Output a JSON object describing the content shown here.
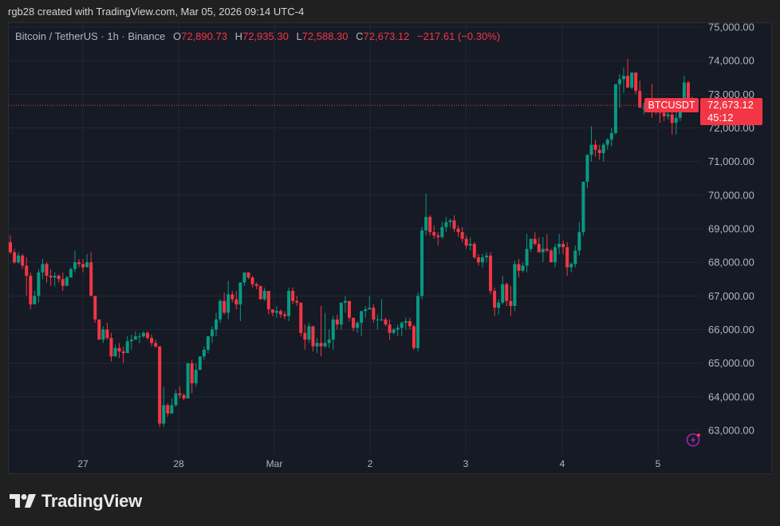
{
  "credit": "rgb28 created with TradingView.com, Mar 05, 2026 09:14 UTC-4",
  "legend": {
    "symbol": "Bitcoin / TetherUS · 1h · Binance",
    "open_label": "O",
    "open": "72,890.73",
    "high_label": "H",
    "high": "72,935.30",
    "low_label": "L",
    "low": "72,588.30",
    "close_label": "C",
    "close": "72,673.12",
    "change": "−217.61 (−0.30%)"
  },
  "last_price": {
    "symbol_tag": "BTCUSDT",
    "price": "72,673.12",
    "countdown": "45:12"
  },
  "brand": "TradingView",
  "colors": {
    "up": "#089981",
    "down": "#f23645",
    "background": "#161a25",
    "grid": "#232733",
    "axis_text": "#b2b5be",
    "accent_bolt": "#9c27b0"
  },
  "chart_data": {
    "type": "candlestick",
    "title": "Bitcoin / TetherUS · 1h · Binance",
    "xlabel": "",
    "ylabel": "",
    "ylim": [
      62600,
      75000
    ],
    "y_ticks": [
      "75,000.00",
      "74,000.00",
      "73,000.00",
      "72,000.00",
      "71,000.00",
      "70,000.00",
      "69,000.00",
      "68,000.00",
      "67,000.00",
      "66,000.00",
      "65,000.00",
      "64,000.00",
      "63,000.00"
    ],
    "x_ticks": [
      "27",
      "28",
      "Mar",
      "2",
      "3",
      "4",
      "5"
    ],
    "grid": true,
    "last_price": 72673.12,
    "candles_ohlc": [
      [
        68600,
        68800,
        68250,
        68300
      ],
      [
        68300,
        68400,
        67950,
        68000
      ],
      [
        68000,
        68300,
        67950,
        68200
      ],
      [
        68200,
        68250,
        67800,
        67900
      ],
      [
        67900,
        68150,
        67000,
        67600
      ],
      [
        67600,
        67700,
        66600,
        66750
      ],
      [
        66750,
        67150,
        66750,
        67000
      ],
      [
        67000,
        67800,
        66800,
        67700
      ],
      [
        67700,
        68100,
        67500,
        67950
      ],
      [
        67950,
        68000,
        67400,
        67600
      ],
      [
        67600,
        67800,
        67300,
        67550
      ],
      [
        67550,
        67700,
        67300,
        67600
      ],
      [
        67600,
        67650,
        67400,
        67500
      ],
      [
        67500,
        67700,
        67150,
        67300
      ],
      [
        67300,
        67600,
        67300,
        67550
      ],
      [
        67550,
        67850,
        67550,
        67800
      ],
      [
        67800,
        68350,
        67700,
        68000
      ],
      [
        68000,
        68100,
        67850,
        67950
      ],
      [
        67950,
        68100,
        67700,
        67850
      ],
      [
        67850,
        68250,
        67850,
        68000
      ],
      [
        68000,
        68300,
        67000,
        67000
      ],
      [
        67000,
        67000,
        66200,
        66300
      ],
      [
        66300,
        66300,
        65700,
        65700
      ],
      [
        65700,
        66100,
        65600,
        66000
      ],
      [
        66000,
        66200,
        65700,
        65750
      ],
      [
        65750,
        65900,
        65050,
        65200
      ],
      [
        65200,
        65550,
        65200,
        65450
      ],
      [
        65450,
        65600,
        65150,
        65350
      ],
      [
        65350,
        65500,
        65000,
        65300
      ],
      [
        65300,
        65800,
        65300,
        65650
      ],
      [
        65650,
        65850,
        65400,
        65700
      ],
      [
        65700,
        65950,
        65750,
        65800
      ],
      [
        65800,
        65900,
        65600,
        65800
      ],
      [
        65800,
        65950,
        65750,
        65900
      ],
      [
        65900,
        65950,
        65700,
        65750
      ],
      [
        65750,
        65850,
        65500,
        65600
      ],
      [
        65600,
        65700,
        65450,
        65500
      ],
      [
        65500,
        65500,
        63100,
        63200
      ],
      [
        63200,
        64300,
        63100,
        63750
      ],
      [
        63750,
        63800,
        63400,
        63500
      ],
      [
        63500,
        63950,
        63500,
        63750
      ],
      [
        63750,
        64200,
        63700,
        64100
      ],
      [
        64100,
        64300,
        63950,
        64050
      ],
      [
        64050,
        64100,
        63900,
        63950
      ],
      [
        63950,
        64900,
        63950,
        65000
      ],
      [
        65000,
        65100,
        64100,
        64400
      ],
      [
        64400,
        65000,
        64300,
        64800
      ],
      [
        64800,
        65200,
        64800,
        65200
      ],
      [
        65200,
        65500,
        65100,
        65400
      ],
      [
        65400,
        65800,
        65300,
        65800
      ],
      [
        65800,
        66100,
        65600,
        66000
      ],
      [
        66000,
        66500,
        65800,
        66300
      ],
      [
        66300,
        66900,
        66200,
        66850
      ],
      [
        66850,
        67100,
        66450,
        66500
      ],
      [
        66500,
        67450,
        66300,
        67050
      ],
      [
        67050,
        67150,
        66800,
        66900
      ],
      [
        66900,
        67150,
        66600,
        66750
      ],
      [
        66750,
        67400,
        66250,
        67400
      ],
      [
        67400,
        67700,
        67300,
        67700
      ],
      [
        67700,
        67700,
        67500,
        67550
      ],
      [
        67550,
        67600,
        67250,
        67350
      ],
      [
        67350,
        67400,
        67200,
        67300
      ],
      [
        67300,
        67300,
        66900,
        66900
      ],
      [
        66900,
        67250,
        66850,
        67150
      ],
      [
        67150,
        67150,
        66450,
        66600
      ],
      [
        66600,
        66600,
        66400,
        66500
      ],
      [
        66500,
        66700,
        66350,
        66550
      ],
      [
        66550,
        66600,
        66350,
        66450
      ],
      [
        66450,
        66550,
        66300,
        66400
      ],
      [
        66400,
        67250,
        66250,
        67150
      ],
      [
        67150,
        67250,
        66750,
        66850
      ],
      [
        66850,
        67000,
        66700,
        66800
      ],
      [
        66800,
        66800,
        65800,
        65900
      ],
      [
        65900,
        66150,
        65400,
        65700
      ],
      [
        65700,
        66200,
        65600,
        66100
      ],
      [
        66100,
        66100,
        65350,
        65500
      ],
      [
        65500,
        65750,
        65300,
        65600
      ],
      [
        65600,
        66700,
        65200,
        65500
      ],
      [
        65500,
        66500,
        65450,
        65600
      ],
      [
        65600,
        66000,
        65450,
        65700
      ],
      [
        65700,
        66400,
        65400,
        66300
      ],
      [
        66300,
        66450,
        66000,
        66150
      ],
      [
        66150,
        66800,
        66000,
        66800
      ],
      [
        66800,
        67000,
        66500,
        66850
      ],
      [
        66850,
        66850,
        66250,
        66350
      ],
      [
        66350,
        66350,
        65950,
        66050
      ],
      [
        66050,
        66250,
        65900,
        66200
      ],
      [
        66200,
        66550,
        65800,
        66550
      ],
      [
        66550,
        66700,
        66350,
        66600
      ],
      [
        66600,
        67000,
        66600,
        66650
      ],
      [
        66650,
        66750,
        66200,
        66300
      ],
      [
        66300,
        66450,
        66000,
        66300
      ],
      [
        66300,
        66900,
        66250,
        66300
      ],
      [
        66300,
        66350,
        66100,
        66150
      ],
      [
        66150,
        66300,
        65700,
        65900
      ],
      [
        65900,
        66050,
        65850,
        66000
      ],
      [
        66000,
        66150,
        65800,
        66050
      ],
      [
        66050,
        66250,
        65800,
        66200
      ],
      [
        66200,
        66350,
        66000,
        66250
      ],
      [
        66250,
        66350,
        66000,
        66100
      ],
      [
        66100,
        66150,
        65400,
        65450
      ],
      [
        65450,
        67100,
        65350,
        67000
      ],
      [
        67000,
        69050,
        66900,
        68950
      ],
      [
        68950,
        70050,
        68800,
        69350
      ],
      [
        69350,
        69400,
        68800,
        68900
      ],
      [
        68900,
        69100,
        68700,
        68800
      ],
      [
        68800,
        68900,
        68500,
        68750
      ],
      [
        68750,
        69200,
        68700,
        69050
      ],
      [
        69050,
        69350,
        68900,
        69200
      ],
      [
        69200,
        69300,
        69050,
        69250
      ],
      [
        69250,
        69400,
        68900,
        69000
      ],
      [
        69000,
        69100,
        68750,
        68900
      ],
      [
        68900,
        69050,
        68600,
        68700
      ],
      [
        68700,
        68800,
        68400,
        68500
      ],
      [
        68500,
        68750,
        68350,
        68550
      ],
      [
        68550,
        68600,
        68100,
        68150
      ],
      [
        68150,
        68250,
        67900,
        68000
      ],
      [
        68000,
        68250,
        67850,
        68150
      ],
      [
        68150,
        68300,
        68000,
        68200
      ],
      [
        68200,
        68300,
        67050,
        67150
      ],
      [
        67150,
        67250,
        66400,
        66650
      ],
      [
        66650,
        66900,
        66450,
        66800
      ],
      [
        66800,
        67600,
        66750,
        67350
      ],
      [
        67350,
        67400,
        66700,
        66850
      ],
      [
        66850,
        67300,
        66400,
        66700
      ],
      [
        66700,
        68050,
        66550,
        67950
      ],
      [
        67950,
        68100,
        67550,
        67750
      ],
      [
        67750,
        68000,
        67700,
        67900
      ],
      [
        67900,
        68850,
        67700,
        68400
      ],
      [
        68400,
        68700,
        68300,
        68700
      ],
      [
        68700,
        68900,
        68500,
        68550
      ],
      [
        68550,
        68750,
        68350,
        68300
      ],
      [
        68300,
        68750,
        68000,
        68400
      ],
      [
        68400,
        68850,
        68300,
        68350
      ],
      [
        68350,
        68400,
        68000,
        68000
      ],
      [
        68000,
        68550,
        67850,
        68450
      ],
      [
        68450,
        68850,
        68250,
        68550
      ],
      [
        68550,
        68650,
        68250,
        68450
      ],
      [
        68450,
        68600,
        67600,
        67850
      ],
      [
        67850,
        68000,
        67700,
        67950
      ],
      [
        67950,
        68500,
        67850,
        68350
      ],
      [
        68350,
        69200,
        68200,
        68900
      ],
      [
        68900,
        69850,
        68800,
        70400
      ],
      [
        70400,
        71100,
        70200,
        71200
      ],
      [
        71200,
        72050,
        71000,
        71500
      ],
      [
        71500,
        71650,
        71150,
        71350
      ],
      [
        71350,
        71500,
        71050,
        71250
      ],
      [
        71250,
        71550,
        71000,
        71500
      ],
      [
        71500,
        71700,
        71350,
        71650
      ],
      [
        71650,
        72000,
        71450,
        71850
      ],
      [
        71850,
        73300,
        71800,
        73300
      ],
      [
        73300,
        73600,
        72600,
        73450
      ],
      [
        73450,
        73800,
        73050,
        73550
      ],
      [
        73550,
        74050,
        73300,
        73200
      ],
      [
        73200,
        73600,
        73150,
        73650
      ],
      [
        73650,
        73650,
        73000,
        73100
      ],
      [
        73100,
        73400,
        72650,
        72600
      ],
      [
        72600,
        72750,
        72400,
        72600
      ],
      [
        72600,
        72900,
        72550,
        72850
      ],
      [
        72850,
        73300,
        72300,
        72600
      ],
      [
        72600,
        72800,
        72400,
        72500
      ],
      [
        72500,
        72650,
        72150,
        72450
      ],
      [
        72450,
        72550,
        72200,
        72350
      ],
      [
        72350,
        72600,
        72250,
        72400
      ],
      [
        72400,
        72700,
        71800,
        72150
      ],
      [
        72150,
        72450,
        71800,
        72300
      ],
      [
        72300,
        72800,
        72200,
        72700
      ],
      [
        72700,
        73550,
        72650,
        73350
      ],
      [
        73350,
        73400,
        72800,
        72890
      ],
      [
        72890,
        72935,
        72588,
        72673
      ]
    ]
  }
}
